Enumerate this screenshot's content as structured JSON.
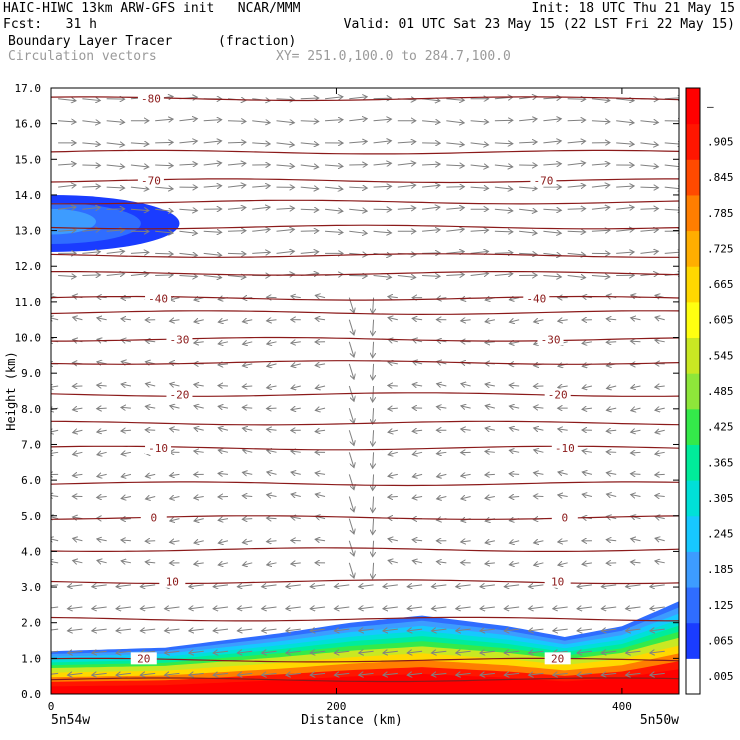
{
  "header": {
    "line1_left": "HAIC-HIWC 13km ARW-GFS init   NCAR/MMM",
    "line1_right": "Init: 18 UTC Thu 21 May 15",
    "line2_left": "Fcst:   31 h",
    "line2_right": "Valid: 01 UTC Sat 23 May 15 (22 LST Fri 22 May 15)",
    "line3_left": "Boundary Layer Tracer",
    "line3_mid": "(fraction)",
    "line4_left": "Circulation vectors",
    "line4_mid": "XY= 251.0,100.0 to 284.7,100.0"
  },
  "colors": {
    "contour": "#8b1a1a",
    "vector": "#808080",
    "fill_scale": [
      "#ffffff",
      "#1a3cff",
      "#2f6dff",
      "#3d9cff",
      "#17c8ff",
      "#00e0d8",
      "#00ec9a",
      "#34ea4a",
      "#8ee63a",
      "#c9e823",
      "#ffff10",
      "#ffd800",
      "#ffae00",
      "#ff7e00",
      "#ff4a00",
      "#ff1600",
      "#ff0000"
    ]
  },
  "chart_data": {
    "type": "heatmap",
    "title": "Boundary Layer Tracer",
    "units": "(fraction)",
    "xlabel": "Distance (km)",
    "ylabel": "Height (km)",
    "xlim": [
      0,
      440
    ],
    "ylim": [
      0,
      17
    ],
    "x_ticks": [
      "0",
      "200",
      "400"
    ],
    "x_tick_values": [
      0,
      200,
      400
    ],
    "y_ticks": [
      "0.0",
      "1.0",
      "2.0",
      "3.0",
      "4.0",
      "5.0",
      "6.0",
      "7.0",
      "8.0",
      "9.0",
      "10.0",
      "11.0",
      "12.0",
      "13.0",
      "14.0",
      "15.0",
      "16.0",
      "17.0"
    ],
    "x_end_labels": [
      "5n54w",
      "5n50w"
    ],
    "colorbar": {
      "labels": [
        ".005",
        ".065",
        ".125",
        ".185",
        ".245",
        ".305",
        ".365",
        ".425",
        ".485",
        ".545",
        ".605",
        ".665",
        ".725",
        ".785",
        ".845",
        ".905",
        "–"
      ]
    },
    "tracer_top_km": [
      {
        "x": 0,
        "y": 1.2
      },
      {
        "x": 80,
        "y": 1.3
      },
      {
        "x": 160,
        "y": 1.7
      },
      {
        "x": 210,
        "y": 2.0
      },
      {
        "x": 260,
        "y": 2.2
      },
      {
        "x": 320,
        "y": 1.9
      },
      {
        "x": 360,
        "y": 1.6
      },
      {
        "x": 400,
        "y": 1.9
      },
      {
        "x": 440,
        "y": 2.6
      }
    ],
    "upper_tracer_blob": {
      "x_start": 0,
      "x_end": 90,
      "y_bottom": 12.4,
      "y_top": 14.0
    },
    "contour_labels": [
      {
        "text": "-80",
        "x": 70,
        "y": 16.7
      },
      {
        "text": "-70",
        "x": 70,
        "y": 14.4
      },
      {
        "text": "-70",
        "x": 345,
        "y": 14.4
      },
      {
        "text": "-40",
        "x": 75,
        "y": 11.1
      },
      {
        "text": "-40",
        "x": 340,
        "y": 11.1
      },
      {
        "text": "-30",
        "x": 90,
        "y": 9.95
      },
      {
        "text": "-30",
        "x": 350,
        "y": 9.95
      },
      {
        "text": "-20",
        "x": 90,
        "y": 8.4
      },
      {
        "text": "-20",
        "x": 355,
        "y": 8.4
      },
      {
        "text": "-10",
        "x": 75,
        "y": 6.9
      },
      {
        "text": "-10",
        "x": 360,
        "y": 6.9
      },
      {
        "text": "0",
        "x": 72,
        "y": 4.95
      },
      {
        "text": "0",
        "x": 360,
        "y": 4.95
      },
      {
        "text": "10",
        "x": 85,
        "y": 3.15
      },
      {
        "text": "10",
        "x": 355,
        "y": 3.15
      },
      {
        "text": "20",
        "x": 65,
        "y": 1.0
      },
      {
        "text": "20",
        "x": 355,
        "y": 1.0
      }
    ],
    "contour_levels_km": [
      0.4,
      0.95,
      2.1,
      3.15,
      4.05,
      4.95,
      5.9,
      6.9,
      7.6,
      8.4,
      9.3,
      9.95,
      10.7,
      11.1,
      11.8,
      12.3,
      13.1,
      13.8,
      14.4,
      15.2,
      16.7
    ]
  }
}
